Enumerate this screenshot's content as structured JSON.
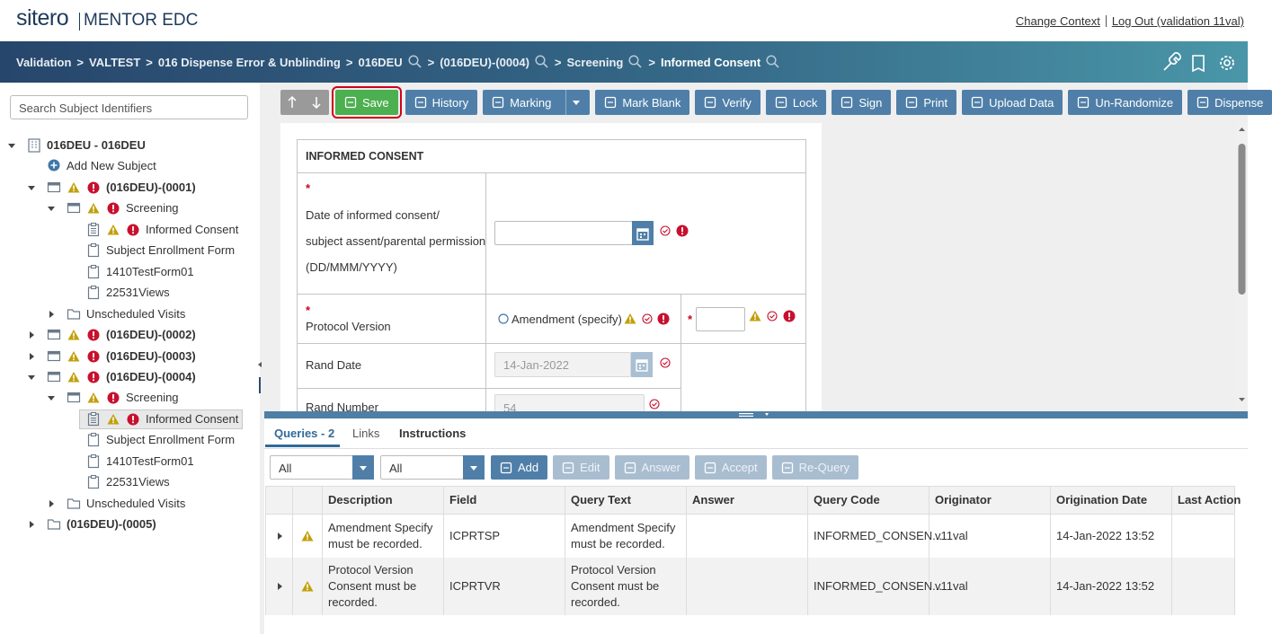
{
  "header": {
    "logo": "sitero",
    "product": "MENTOR EDC",
    "links": [
      "Change Context",
      "Log Out (validation 11val)"
    ]
  },
  "breadcrumb": {
    "separator": ">",
    "items": [
      {
        "label": "Validation"
      },
      {
        "label": "VALTEST"
      },
      {
        "label": "016 Dispense Error & Unblinding"
      },
      {
        "label": "016DEU",
        "search": true
      },
      {
        "label": "(016DEU)-(0004)",
        "search": true
      },
      {
        "label": "Screening",
        "search": true
      },
      {
        "label": "Informed Consent",
        "search": true,
        "current": true
      }
    ]
  },
  "sidebar": {
    "search_placeholder": "Search Subject Identifiers",
    "tree": [
      {
        "label": "016DEU - 016DEU",
        "icon": "site",
        "bold": true,
        "expanded": true,
        "children": [
          {
            "label": "Add New Subject",
            "icon": "add"
          },
          {
            "label": "(016DEU)-(0001)",
            "icon": "subject",
            "bold": true,
            "warning": true,
            "error": true,
            "expanded": true,
            "children": [
              {
                "label": "Screening",
                "icon": "visit",
                "warning": true,
                "error": true,
                "expanded": true,
                "children": [
                  {
                    "label": "Informed Consent",
                    "icon": "form-filled",
                    "warning": true,
                    "error": true
                  },
                  {
                    "label": "Subject Enrollment Form",
                    "icon": "form"
                  },
                  {
                    "label": "1410TestForm01",
                    "icon": "form"
                  },
                  {
                    "label": "22531Views",
                    "icon": "form"
                  }
                ]
              },
              {
                "label": "Unscheduled Visits",
                "icon": "folder",
                "expanded": false
              }
            ]
          },
          {
            "label": "(016DEU)-(0002)",
            "icon": "subject",
            "bold": true,
            "warning": true,
            "error": true,
            "expanded": false
          },
          {
            "label": "(016DEU)-(0003)",
            "icon": "subject",
            "bold": true,
            "warning": true,
            "error": true,
            "expanded": false
          },
          {
            "label": "(016DEU)-(0004)",
            "icon": "subject",
            "bold": true,
            "warning": true,
            "error": true,
            "expanded": true,
            "children": [
              {
                "label": "Screening",
                "icon": "visit",
                "warning": true,
                "error": true,
                "expanded": true,
                "children": [
                  {
                    "label": "Informed Consent",
                    "icon": "form-filled",
                    "warning": true,
                    "error": true,
                    "selected": true
                  },
                  {
                    "label": "Subject Enrollment Form",
                    "icon": "form"
                  },
                  {
                    "label": "1410TestForm01",
                    "icon": "form"
                  },
                  {
                    "label": "22531Views",
                    "icon": "form"
                  }
                ]
              },
              {
                "label": "Unscheduled Visits",
                "icon": "folder",
                "expanded": false
              }
            ]
          },
          {
            "label": "(016DEU)-(0005)",
            "icon": "folder",
            "bold": true,
            "expanded": false
          }
        ]
      }
    ]
  },
  "toolbar": {
    "buttons": [
      {
        "label": "Save",
        "style": "primary"
      },
      {
        "label": "History"
      },
      {
        "label": "Marking",
        "dropdown": true
      },
      {
        "label": "Mark Blank"
      },
      {
        "label": "Verify"
      },
      {
        "label": "Lock"
      },
      {
        "label": "Sign"
      },
      {
        "label": "Print"
      },
      {
        "label": "Upload Data"
      },
      {
        "label": "Un-Randomize"
      },
      {
        "label": "Dispense"
      }
    ]
  },
  "form": {
    "title": "INFORMED CONSENT",
    "required_mark": "*",
    "date_label": [
      "Date of informed consent/",
      "subject assent/parental permission",
      "(DD/MMM/YYYY)"
    ],
    "protocol_label": "Protocol Version",
    "amendment_option": "Amendment (specify)",
    "rand_date_label": "Rand Date",
    "rand_date_value": "14-Jan-2022",
    "rand_number_label": "Rand Number",
    "rand_number_value": "54"
  },
  "queries": {
    "tabs": [
      "Queries - 2",
      "Links",
      "Instructions"
    ],
    "filters": [
      "All",
      "All"
    ],
    "buttons": [
      {
        "label": "Add",
        "enabled": true
      },
      {
        "label": "Edit"
      },
      {
        "label": "Answer"
      },
      {
        "label": "Accept"
      },
      {
        "label": "Re-Query"
      }
    ],
    "columns": [
      "Description",
      "Field",
      "Query Text",
      "Answer",
      "Query Code",
      "Originator",
      "Origination Date",
      "Last Action"
    ],
    "rows": [
      {
        "description": "Amendment Specify must be recorded.",
        "field": "ICPRTSP",
        "query_text": "Amendment Specify must be recorded.",
        "query_code": "INFORMED_CONSEN...",
        "originator": "v11val",
        "origination_date": "14-Jan-2022 13:52"
      },
      {
        "description": "Protocol Version Consent must be recorded.",
        "field": "ICPRTVR",
        "query_text": "Protocol Version Consent must be recorded.",
        "query_code": "INFORMED_CONSEN...",
        "originator": "v11val",
        "origination_date": "14-Jan-2022 13:52"
      }
    ]
  }
}
